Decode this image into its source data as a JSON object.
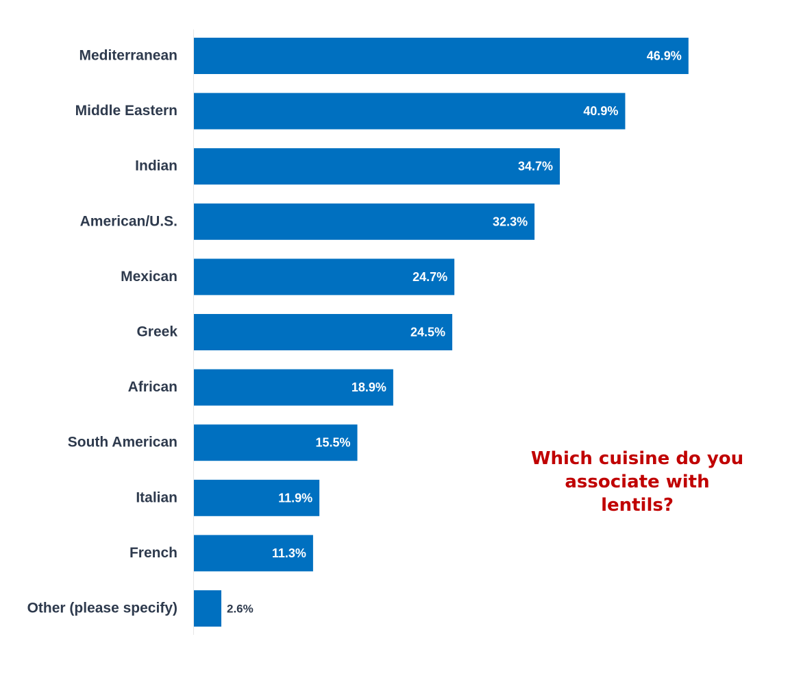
{
  "chart_data": {
    "type": "bar",
    "orientation": "horizontal",
    "title": "Which cuisine do you associate with lentils?",
    "categories": [
      "Mediterranean",
      "Middle Eastern",
      "Indian",
      "American/U.S.",
      "Mexican",
      "Greek",
      "African",
      "South American",
      "Italian",
      "French",
      "Other (please specify)"
    ],
    "values": [
      46.9,
      40.9,
      34.7,
      32.3,
      24.7,
      24.5,
      18.9,
      15.5,
      11.9,
      11.3,
      2.6
    ],
    "data_labels": [
      "46.9%",
      "40.9%",
      "34.7%",
      "32.3%",
      "24.7%",
      "24.5%",
      "18.9%",
      "15.5%",
      "11.9%",
      "11.3%",
      "2.6%"
    ],
    "value_unit": "%",
    "xlim": [
      0,
      50
    ],
    "grid": false,
    "legend": "none",
    "bar_color": "#0070c0",
    "title_color": "#c00000",
    "category_label_color": "#2e3a4d",
    "inside_label_color": "#ffffff",
    "outside_label_color": "#2e3a4d"
  }
}
